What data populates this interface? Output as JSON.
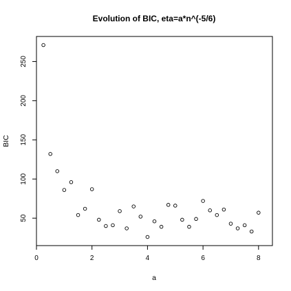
{
  "chart_data": {
    "type": "scatter",
    "title": "Evolution of BIC, eta=a*n^(-5/6)",
    "xlabel": "a",
    "ylabel": "BIC",
    "xlim": [
      0,
      8.5
    ],
    "ylim": [
      15,
      282
    ],
    "x_ticks": [
      0,
      2,
      4,
      6,
      8
    ],
    "y_ticks": [
      50,
      100,
      150,
      200,
      250
    ],
    "grid": false,
    "legend": "none",
    "marker": "open-circle",
    "x": [
      0.25,
      0.5,
      0.75,
      1.0,
      1.25,
      1.5,
      1.75,
      2.0,
      2.25,
      2.5,
      2.75,
      3.0,
      3.25,
      3.5,
      3.75,
      4.0,
      4.25,
      4.5,
      4.75,
      5.0,
      5.25,
      5.5,
      5.75,
      6.0,
      6.25,
      6.5,
      6.75,
      7.0,
      7.25,
      7.5,
      7.75,
      8.0
    ],
    "y": [
      271,
      132,
      110,
      86,
      96,
      54,
      62,
      87,
      48,
      40,
      41,
      59,
      37,
      65,
      52,
      26,
      46,
      39,
      67,
      66,
      48,
      39,
      49,
      72,
      60,
      54,
      61,
      43,
      37,
      41,
      33,
      57
    ]
  }
}
